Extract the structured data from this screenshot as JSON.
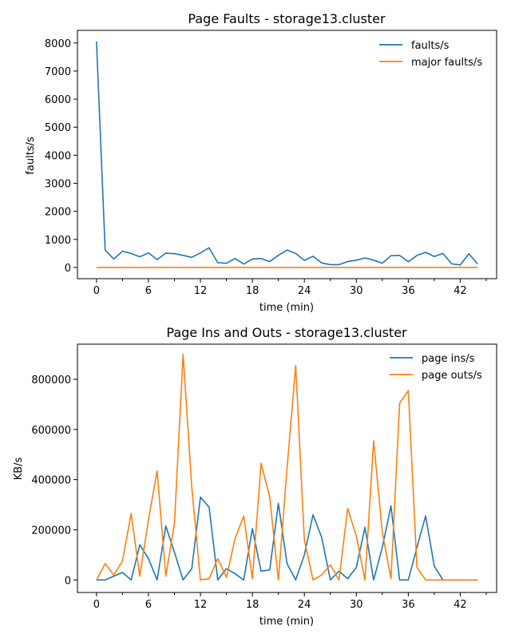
{
  "chart_data": [
    {
      "type": "line",
      "title": "Page Faults - storage13.cluster",
      "xlabel": "time (min)",
      "ylabel": "faults/s",
      "xlim": [
        -2.2,
        46.2
      ],
      "ylim": [
        -400,
        8450
      ],
      "xticks": [
        0,
        6,
        12,
        18,
        24,
        30,
        36,
        42
      ],
      "yticks": [
        0,
        1000,
        2000,
        3000,
        4000,
        5000,
        6000,
        7000,
        8000
      ],
      "legend_position": "top-right",
      "x": [
        0,
        1,
        2,
        3,
        4,
        5,
        6,
        7,
        8,
        9,
        10,
        11,
        12,
        13,
        14,
        15,
        16,
        17,
        18,
        19,
        20,
        21,
        22,
        23,
        24,
        25,
        26,
        27,
        28,
        29,
        30,
        31,
        32,
        33,
        34,
        35,
        36,
        37,
        38,
        39,
        40,
        41,
        42,
        43,
        44
      ],
      "series": [
        {
          "name": "faults/s",
          "color": "#1f77b4",
          "values": [
            8050,
            620,
            300,
            580,
            500,
            380,
            520,
            280,
            510,
            490,
            430,
            360,
            520,
            700,
            170,
            150,
            320,
            120,
            300,
            320,
            210,
            430,
            620,
            500,
            250,
            400,
            160,
            100,
            100,
            210,
            260,
            340,
            260,
            150,
            420,
            430,
            200,
            430,
            540,
            390,
            500,
            130,
            90,
            490,
            120
          ]
        },
        {
          "name": "major faults/s",
          "color": "#ff7f0e",
          "values": [
            0,
            0,
            0,
            0,
            0,
            0,
            0,
            0,
            0,
            0,
            0,
            0,
            0,
            0,
            0,
            0,
            0,
            0,
            0,
            0,
            0,
            0,
            0,
            0,
            0,
            0,
            0,
            0,
            0,
            0,
            0,
            0,
            0,
            0,
            0,
            0,
            0,
            0,
            0,
            0,
            0,
            0,
            0,
            0,
            0
          ]
        }
      ]
    },
    {
      "type": "line",
      "title": "Page Ins and Outs - storage13.cluster",
      "xlabel": "time (min)",
      "ylabel": "KB/s",
      "xlim": [
        -2.2,
        46.2
      ],
      "ylim": [
        -50000,
        940000
      ],
      "xticks": [
        0,
        6,
        12,
        18,
        24,
        30,
        36,
        42
      ],
      "yticks": [
        0,
        200000,
        400000,
        600000,
        800000
      ],
      "legend_position": "top-right",
      "x": [
        0,
        1,
        2,
        3,
        4,
        5,
        6,
        7,
        8,
        9,
        10,
        11,
        12,
        13,
        14,
        15,
        16,
        17,
        18,
        19,
        20,
        21,
        22,
        23,
        24,
        25,
        26,
        27,
        28,
        29,
        30,
        31,
        32,
        33,
        34,
        35,
        36,
        37,
        38,
        39,
        40,
        41,
        42,
        43,
        44
      ],
      "series": [
        {
          "name": "page ins/s",
          "color": "#1f77b4",
          "values": [
            0,
            0,
            15000,
            30000,
            0,
            140000,
            85000,
            0,
            215000,
            110000,
            0,
            45000,
            330000,
            290000,
            0,
            45000,
            25000,
            0,
            205000,
            35000,
            40000,
            305000,
            65000,
            0,
            100000,
            260000,
            170000,
            0,
            35000,
            5000,
            50000,
            210000,
            0,
            130000,
            295000,
            0,
            0,
            130000,
            255000,
            55000,
            0,
            0,
            0,
            0,
            0
          ]
        },
        {
          "name": "page outs/s",
          "color": "#ff7f0e",
          "values": [
            0,
            65000,
            20000,
            75000,
            265000,
            15000,
            240000,
            435000,
            15000,
            225000,
            900000,
            370000,
            0,
            5000,
            85000,
            10000,
            165000,
            255000,
            5000,
            465000,
            330000,
            0,
            445000,
            855000,
            160000,
            0,
            20000,
            60000,
            0,
            285000,
            175000,
            0,
            555000,
            190000,
            5000,
            705000,
            755000,
            50000,
            0,
            0,
            0,
            0,
            0,
            0,
            0
          ]
        }
      ]
    }
  ]
}
